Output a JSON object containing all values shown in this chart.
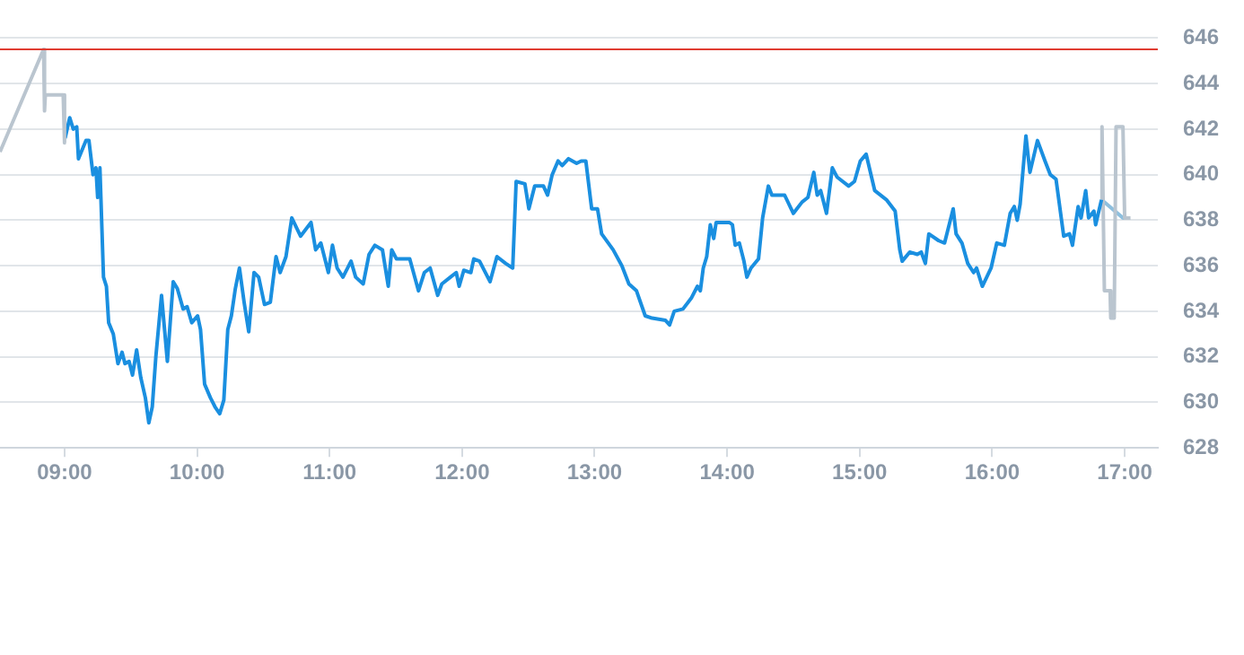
{
  "chart_data": {
    "type": "line",
    "xlim": [
      8.513,
      17.25
    ],
    "ylim": [
      628,
      646
    ],
    "xticks": [
      {
        "value": 9,
        "label": "09:00"
      },
      {
        "value": 10,
        "label": "10:00"
      },
      {
        "value": 11,
        "label": "11:00"
      },
      {
        "value": 12,
        "label": "12:00"
      },
      {
        "value": 13,
        "label": "13:00"
      },
      {
        "value": 14,
        "label": "14:00"
      },
      {
        "value": 15,
        "label": "15:00"
      },
      {
        "value": 16,
        "label": "16:00"
      },
      {
        "value": 17,
        "label": "17:00"
      }
    ],
    "yticks": [
      628,
      630,
      632,
      634,
      636,
      638,
      640,
      642,
      644,
      646
    ],
    "grid": "y",
    "legend": false,
    "marker": "none",
    "line_style": "solid",
    "ref_lines": [
      {
        "axis": "y",
        "value": 645.5,
        "color": "#e03c31"
      }
    ],
    "series": [
      {
        "color": "#bac5cf",
        "x": [
          8.513,
          8.842,
          8.849,
          8.855,
          8.99,
          9.0
        ],
        "values": [
          641.0,
          645.5,
          642.8,
          643.5,
          643.5,
          641.4
        ]
      },
      {
        "color": "#1a8fe0",
        "x": [
          9.004,
          9.039,
          9.066,
          9.092,
          9.105,
          9.162,
          9.184,
          9.215,
          9.237,
          9.25,
          9.267,
          9.294,
          9.316,
          9.333,
          9.368,
          9.403,
          9.434,
          9.456,
          9.487,
          9.513,
          9.544,
          9.575,
          9.61,
          9.636,
          9.662,
          9.689,
          9.732,
          9.776,
          9.82,
          9.851,
          9.895,
          9.925,
          9.96,
          10.004,
          10.026,
          10.057,
          10.101,
          10.136,
          10.171,
          10.202,
          10.232,
          10.259,
          10.289,
          10.32,
          10.355,
          10.39,
          10.43,
          10.465,
          10.509,
          10.553,
          10.596,
          10.627,
          10.671,
          10.715,
          10.781,
          10.86,
          10.895,
          10.934,
          10.991,
          11.022,
          11.057,
          11.101,
          11.162,
          11.197,
          11.254,
          11.298,
          11.342,
          11.399,
          11.443,
          11.469,
          11.505,
          11.605,
          11.671,
          11.715,
          11.759,
          11.816,
          11.847,
          11.912,
          11.956,
          11.978,
          12.013,
          12.066,
          12.088,
          12.132,
          12.211,
          12.263,
          12.329,
          12.382,
          12.408,
          12.474,
          12.504,
          12.548,
          12.614,
          12.645,
          12.68,
          12.724,
          12.755,
          12.803,
          12.864,
          12.899,
          12.934,
          12.978,
          13.022,
          13.053,
          13.14,
          13.206,
          13.259,
          13.316,
          13.382,
          13.434,
          13.535,
          13.566,
          13.601,
          13.667,
          13.732,
          13.776,
          13.798,
          13.82,
          13.846,
          13.873,
          13.899,
          13.917,
          14.018,
          14.04,
          14.061,
          14.092,
          14.127,
          14.149,
          14.18,
          14.237,
          14.268,
          14.311,
          14.338,
          14.368,
          14.434,
          14.5,
          14.566,
          14.61,
          14.654,
          14.68,
          14.706,
          14.75,
          14.794,
          14.829,
          14.917,
          14.961,
          15.005,
          15.049,
          15.114,
          15.202,
          15.268,
          15.303,
          15.321,
          15.378,
          15.435,
          15.465,
          15.496,
          15.522,
          15.597,
          15.641,
          15.706,
          15.728,
          15.772,
          15.816,
          15.86,
          15.882,
          15.926,
          15.992,
          16.035,
          16.092,
          16.136,
          16.167,
          16.189,
          16.211,
          16.255,
          16.285,
          16.342,
          16.399,
          16.439,
          16.482,
          16.54,
          16.584,
          16.606,
          16.649,
          16.671,
          16.706,
          16.728,
          16.768,
          16.781,
          16.825
        ],
        "values": [
          641.6,
          642.5,
          642.0,
          642.1,
          640.7,
          641.5,
          641.5,
          640.0,
          640.3,
          639.0,
          640.3,
          635.5,
          635.1,
          633.5,
          633.0,
          631.7,
          632.2,
          631.7,
          631.8,
          631.2,
          632.3,
          631.1,
          630.2,
          629.1,
          629.8,
          632.0,
          634.7,
          631.8,
          635.3,
          635.0,
          634.1,
          634.2,
          633.5,
          633.8,
          633.2,
          630.8,
          630.2,
          629.8,
          629.5,
          630.1,
          633.2,
          633.8,
          635.0,
          635.9,
          634.4,
          633.1,
          635.7,
          635.5,
          634.3,
          634.4,
          636.4,
          635.7,
          636.4,
          638.1,
          637.3,
          637.9,
          636.7,
          637.0,
          635.7,
          636.9,
          635.9,
          635.5,
          636.2,
          635.5,
          635.2,
          636.5,
          636.9,
          636.7,
          635.1,
          636.7,
          636.3,
          636.3,
          634.9,
          635.7,
          635.9,
          634.7,
          635.2,
          635.5,
          635.7,
          635.1,
          635.8,
          635.7,
          636.3,
          636.2,
          635.3,
          636.4,
          636.1,
          635.9,
          639.7,
          639.6,
          638.5,
          639.5,
          639.5,
          639.1,
          640.0,
          640.6,
          640.4,
          640.7,
          640.5,
          640.6,
          640.6,
          638.5,
          638.5,
          637.4,
          636.7,
          636.0,
          635.2,
          634.9,
          633.8,
          633.7,
          633.6,
          633.4,
          634.0,
          634.1,
          634.6,
          635.1,
          634.9,
          635.9,
          636.4,
          637.8,
          637.2,
          637.9,
          637.9,
          637.8,
          636.9,
          637.0,
          636.2,
          635.5,
          635.9,
          636.3,
          638.1,
          639.5,
          639.1,
          639.1,
          639.1,
          638.3,
          638.8,
          639.0,
          640.1,
          639.1,
          639.3,
          638.3,
          640.3,
          639.9,
          639.5,
          639.7,
          640.6,
          640.9,
          639.3,
          638.9,
          638.4,
          636.7,
          636.2,
          636.6,
          636.5,
          636.6,
          636.1,
          637.4,
          637.1,
          637.0,
          638.5,
          637.4,
          637.0,
          636.1,
          635.7,
          635.9,
          635.1,
          635.9,
          637.0,
          636.9,
          638.3,
          638.6,
          638.0,
          638.7,
          641.7,
          640.1,
          641.5,
          640.6,
          640.0,
          639.8,
          637.3,
          637.4,
          636.9,
          638.6,
          638.1,
          639.3,
          638.1,
          638.4,
          637.8,
          638.9
        ]
      },
      {
        "color": "#bac5cf",
        "x": [
          16.825,
          16.829,
          16.847,
          16.89,
          16.895,
          16.921,
          16.935,
          16.987,
          17.0,
          17.044
        ],
        "values": [
          638.9,
          642.1,
          634.9,
          634.9,
          633.7,
          633.7,
          642.1,
          642.1,
          638.1,
          638.1
        ]
      },
      {
        "color": "#8dbfde",
        "x": [
          16.825,
          16.987,
          17.031
        ],
        "values": [
          638.9,
          638.1,
          638.1
        ]
      }
    ]
  }
}
